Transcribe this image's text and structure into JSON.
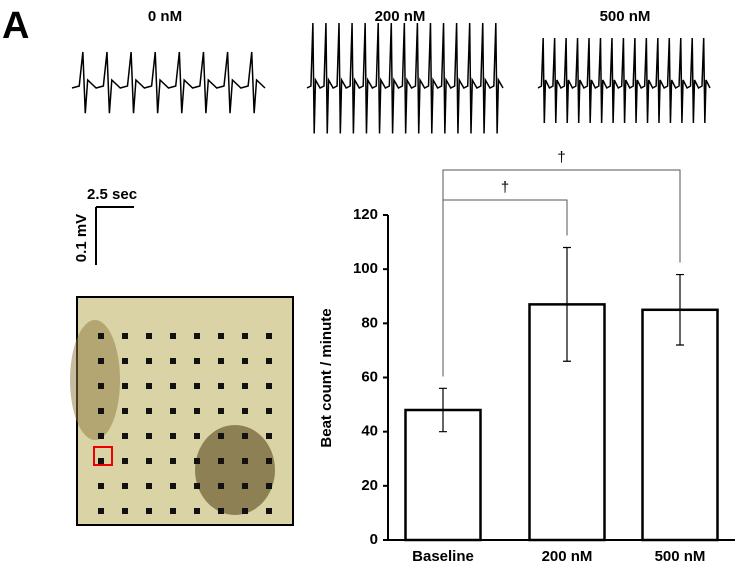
{
  "panel_label": "A",
  "traces": [
    "0 nM",
    "200 nM",
    "500 nM"
  ],
  "scale_bar": {
    "time": "2.5 sec",
    "voltage": "0.1 mV"
  },
  "chart_data": {
    "type": "bar",
    "categories": [
      "Baseline",
      "200 nM",
      "500 nM"
    ],
    "values": [
      48,
      87,
      85
    ],
    "errors": [
      8,
      21,
      13
    ],
    "color": "#ffffff",
    "y_label": "Beat count / minute",
    "ylim": [
      0,
      120
    ],
    "yticks": [
      0,
      20,
      40,
      60,
      80,
      100,
      120
    ],
    "grid": false,
    "annotations": [
      "†",
      "†"
    ]
  }
}
